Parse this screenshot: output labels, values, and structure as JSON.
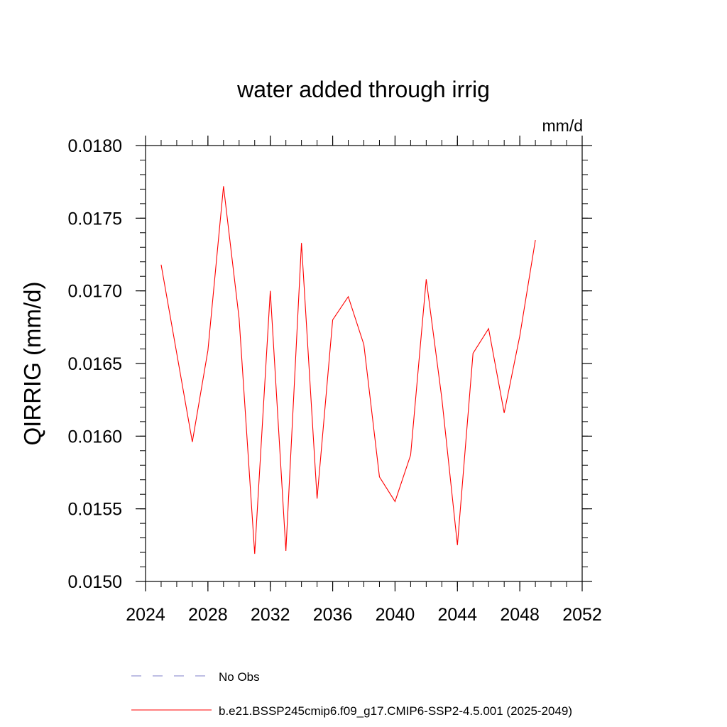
{
  "chart_data": {
    "type": "line",
    "title": "water added through irrig",
    "units": "mm/d",
    "ylabel": "QIRRIG  (mm/d)",
    "xlabel": "",
    "xlim": [
      2024,
      2052
    ],
    "ylim": [
      0.015,
      0.018
    ],
    "xticks": [
      2024,
      2028,
      2032,
      2036,
      2040,
      2044,
      2048,
      2052
    ],
    "xtick_labels": [
      "2024",
      "2028",
      "2032",
      "2036",
      "2040",
      "2044",
      "2048",
      "2052"
    ],
    "xminor_step": 1,
    "yticks": [
      0.015,
      0.0155,
      0.016,
      0.0165,
      0.017,
      0.0175,
      0.018
    ],
    "ytick_labels": [
      "0.0150",
      "0.0155",
      "0.0160",
      "0.0165",
      "0.0170",
      "0.0175",
      "0.0180"
    ],
    "yminor_step": 0.0001,
    "grid": false,
    "series": [
      {
        "name": "b.e21.BSSP245cmip6.f09_g17.CMIP6-SSP2-4.5.001 (2025-2049)",
        "color": "#ff0000",
        "dash": "solid",
        "x": [
          2025,
          2026,
          2027,
          2028,
          2029,
          2030,
          2031,
          2032,
          2033,
          2034,
          2035,
          2036,
          2037,
          2038,
          2039,
          2040,
          2041,
          2042,
          2043,
          2044,
          2045,
          2046,
          2047,
          2048,
          2049
        ],
        "y": [
          0.01718,
          0.01657,
          0.01596,
          0.01659,
          0.01772,
          0.01681,
          0.01519,
          0.017,
          0.01521,
          0.01733,
          0.01557,
          0.0168,
          0.01696,
          0.01663,
          0.01572,
          0.01555,
          0.01587,
          0.01708,
          0.01626,
          0.01525,
          0.01657,
          0.01674,
          0.01616,
          0.01669,
          0.01735
        ]
      }
    ],
    "legend": {
      "position": "bottom",
      "entries": [
        {
          "label": "No Obs",
          "color": "#7d7dc8",
          "dash": "dashed"
        },
        {
          "label": "b.e21.BSSP245cmip6.f09_g17.CMIP6-SSP2-4.5.001 (2025-2049)",
          "color": "#ff0000",
          "dash": "solid"
        }
      ]
    }
  }
}
